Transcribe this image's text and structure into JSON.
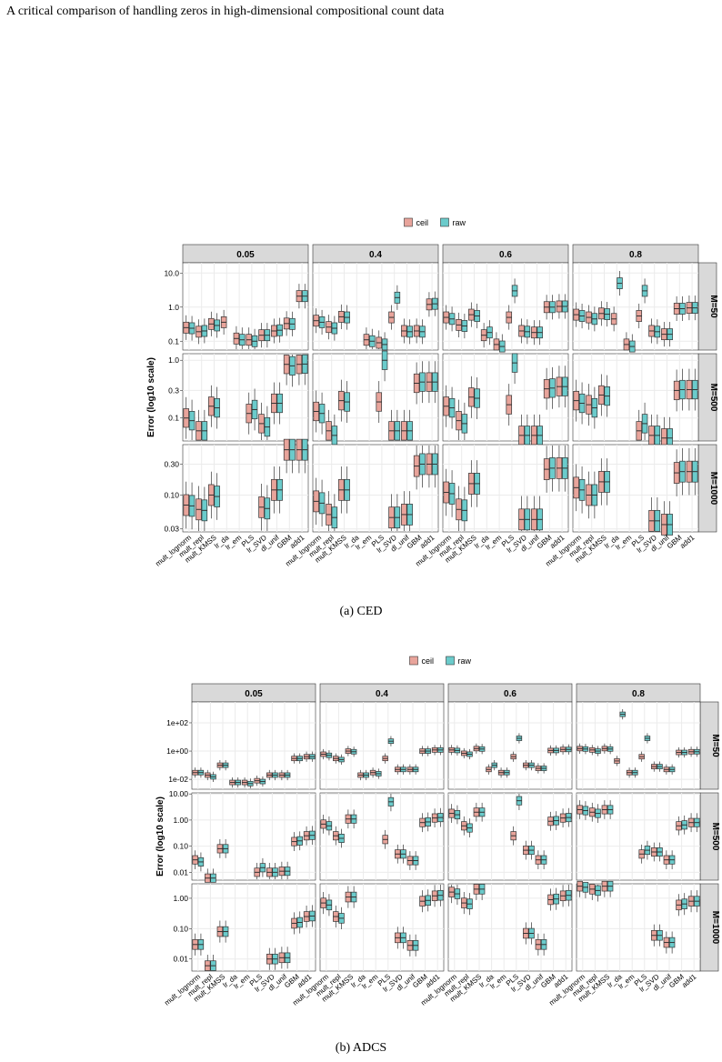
{
  "running_head": "A critical comparison of handling zeros in high-dimensional compositional count data",
  "colors": {
    "ceil": "#e8a49b",
    "raw": "#6bcbcb",
    "strip": "#d9d9d9",
    "grid": "#ebebeb",
    "box_stroke": "#333333"
  },
  "methods": [
    "mult_lognorm",
    "mult_repl",
    "mult_KMSS",
    "lr_da",
    "lr_em",
    "PLS",
    "lr_SVD",
    "dl_unif",
    "GBM",
    "add1"
  ],
  "legend": {
    "ceil": "ceil",
    "raw": "raw"
  },
  "figures": [
    {
      "caption": "(a) CED",
      "ylabel": "Error (log10 scale)",
      "columns": [
        "0.05",
        "0.4",
        "0.6",
        "0.8"
      ],
      "rows": [
        {
          "label": "M=50",
          "ticks": [
            {
              "v": 10,
              "t": "10.0"
            },
            {
              "v": 1,
              "t": "1.0"
            },
            {
              "v": 0.1,
              "t": "0.1"
            }
          ],
          "ymin": 0.055,
          "ymax": 20
        },
        {
          "label": "M=500",
          "ticks": [
            {
              "v": 1,
              "t": "1.0"
            },
            {
              "v": 0.3,
              "t": "0.3"
            },
            {
              "v": 0.1,
              "t": "0.1"
            }
          ],
          "ymin": 0.04,
          "ymax": 1.3
        },
        {
          "label": "M=1000",
          "ticks": [
            {
              "v": 0.3,
              "t": "0.30"
            },
            {
              "v": 0.1,
              "t": "0.10"
            },
            {
              "v": 0.03,
              "t": "0.03"
            }
          ],
          "ymin": 0.027,
          "ymax": 0.6
        }
      ],
      "chart_data": {
        "type": "boxplot",
        "yscale": "log10",
        "panels": {
          "M=50": {
            "0.05": {
              "ceil": [
                0.25,
                0.19,
                0.32,
                0.36,
                0.12,
                0.11,
                0.15,
                0.2,
                0.33,
                2.1
              ],
              "raw": [
                0.24,
                0.2,
                0.29,
                null,
                0.11,
                0.1,
                0.15,
                0.21,
                0.32,
                2.1
              ]
            },
            "0.4": {
              "ceil": [
                0.4,
                0.26,
                0.52,
                null,
                0.11,
                0.09,
                0.5,
                0.2,
                0.2,
                1.2
              ],
              "raw": [
                0.36,
                0.24,
                0.5,
                null,
                0.1,
                0.08,
                1.9,
                0.19,
                0.19,
                1.25
              ]
            },
            "0.6": {
              "ceil": [
                0.5,
                0.3,
                0.6,
                0.15,
                0.08,
                0.5,
                0.2,
                0.18,
                1.0,
                1.05
              ],
              "raw": [
                0.45,
                0.28,
                0.55,
                0.18,
                0.07,
                3.0,
                0.19,
                0.18,
                1.0,
                1.05
              ]
            },
            "0.8": {
              "ceil": [
                0.6,
                0.5,
                0.65,
                0.45,
                0.08,
                0.55,
                0.2,
                0.16,
                0.9,
                0.95
              ],
              "raw": [
                0.55,
                0.45,
                0.62,
                5.0,
                0.07,
                3.0,
                0.19,
                0.16,
                0.9,
                0.95
              ]
            }
          },
          "M=500": {
            "0.05": {
              "ceil": [
                0.1,
                0.06,
                0.16,
                null,
                null,
                0.12,
                0.08,
                0.18,
                0.85,
                0.85
              ],
              "raw": [
                0.09,
                0.06,
                0.15,
                null,
                null,
                0.14,
                0.07,
                0.18,
                0.8,
                0.86
              ]
            },
            "0.4": {
              "ceil": [
                0.13,
                0.06,
                0.2,
                null,
                null,
                0.19,
                0.06,
                0.06,
                0.4,
                0.42
              ],
              "raw": [
                0.12,
                0.05,
                0.19,
                null,
                null,
                1.0,
                0.06,
                0.06,
                0.42,
                0.42
              ]
            },
            "0.6": {
              "ceil": [
                0.16,
                0.09,
                0.23,
                null,
                null,
                0.17,
                0.05,
                0.05,
                0.32,
                0.35
              ],
              "raw": [
                0.15,
                0.08,
                0.22,
                null,
                null,
                0.9,
                0.05,
                0.05,
                0.33,
                0.35
              ]
            },
            "0.8": {
              "ceil": [
                0.2,
                0.17,
                0.25,
                null,
                null,
                0.06,
                0.05,
                0.045,
                0.3,
                0.31
              ],
              "raw": [
                0.18,
                0.15,
                0.24,
                null,
                null,
                0.08,
                0.05,
                0.045,
                0.31,
                0.31
              ]
            }
          },
          "M=1000": {
            "0.05": {
              "ceil": [
                0.07,
                0.06,
                0.1,
                null,
                null,
                null,
                0.065,
                0.12,
                0.5,
                0.5
              ],
              "raw": [
                0.068,
                0.058,
                0.095,
                null,
                null,
                null,
                0.062,
                0.12,
                0.5,
                0.5
              ]
            },
            "0.4": {
              "ceil": [
                0.08,
                0.05,
                0.12,
                null,
                null,
                null,
                0.045,
                0.05,
                0.28,
                0.3
              ],
              "raw": [
                0.075,
                0.045,
                0.12,
                null,
                null,
                null,
                0.045,
                0.05,
                0.3,
                0.3
              ]
            },
            "0.6": {
              "ceil": [
                0.11,
                0.06,
                0.15,
                null,
                null,
                null,
                0.042,
                0.042,
                0.25,
                0.26
              ],
              "raw": [
                0.105,
                0.058,
                0.15,
                null,
                null,
                null,
                0.042,
                0.042,
                0.26,
                0.26
              ]
            },
            "0.8": {
              "ceil": [
                0.13,
                0.1,
                0.16,
                null,
                null,
                null,
                0.04,
                0.035,
                0.22,
                0.23
              ],
              "raw": [
                0.12,
                0.1,
                0.16,
                null,
                null,
                null,
                0.04,
                0.035,
                0.23,
                0.23
              ]
            }
          }
        }
      }
    },
    {
      "caption": "(b) ADCS",
      "ylabel": "Error (log10 scale)",
      "columns": [
        "0.05",
        "0.4",
        "0.6",
        "0.8"
      ],
      "rows": [
        {
          "label": "M=50",
          "ticks": [
            {
              "v": 100,
              "t": "1e+02"
            },
            {
              "v": 1,
              "t": "1e+00"
            },
            {
              "v": 0.01,
              "t": "1e-02"
            }
          ],
          "ymin": 0.002,
          "ymax": 3000
        },
        {
          "label": "M=500",
          "ticks": [
            {
              "v": 10,
              "t": "10.00"
            },
            {
              "v": 1,
              "t": "1.00"
            },
            {
              "v": 0.1,
              "t": "0.10"
            },
            {
              "v": 0.01,
              "t": "0.01"
            }
          ],
          "ymin": 0.005,
          "ymax": 11
        },
        {
          "label": "M=1000",
          "ticks": [
            {
              "v": 1,
              "t": "1.00"
            },
            {
              "v": 0.1,
              "t": "0.10"
            },
            {
              "v": 0.01,
              "t": "0.01"
            }
          ],
          "ymin": 0.004,
          "ymax": 3
        }
      ],
      "chart_data": {
        "type": "boxplot",
        "yscale": "log10",
        "panels": {
          "M=50": {
            "0.05": {
              "ceil": [
                0.03,
                0.02,
                0.1,
                0.006,
                0.006,
                0.008,
                0.02,
                0.02,
                0.3,
                0.4
              ],
              "raw": [
                0.03,
                0.015,
                0.1,
                0.006,
                0.005,
                0.007,
                0.02,
                0.02,
                0.3,
                0.4
              ]
            },
            "0.4": {
              "ceil": [
                0.6,
                0.3,
                1.0,
                0.02,
                0.03,
                0.3,
                0.05,
                0.05,
                1.0,
                1.2
              ],
              "raw": [
                0.5,
                0.25,
                0.9,
                0.02,
                0.025,
                5.0,
                0.05,
                0.05,
                1.0,
                1.2
              ]
            },
            "0.6": {
              "ceil": [
                1.2,
                0.7,
                1.5,
                0.05,
                0.03,
                0.4,
                0.1,
                0.06,
                1.1,
                1.3
              ],
              "raw": [
                1.1,
                0.6,
                1.4,
                0.1,
                0.03,
                8.0,
                0.1,
                0.06,
                1.1,
                1.3
              ]
            },
            "0.8": {
              "ceil": [
                1.5,
                1.2,
                1.5,
                0.2,
                0.03,
                0.4,
                0.08,
                0.05,
                0.8,
                0.9
              ],
              "raw": [
                1.4,
                1.0,
                1.4,
                400,
                0.03,
                8.0,
                0.08,
                0.05,
                0.8,
                0.9
              ]
            }
          },
          "M=500": {
            "0.05": {
              "ceil": [
                0.03,
                0.006,
                0.08,
                null,
                null,
                0.01,
                0.01,
                0.011,
                0.15,
                0.25
              ],
              "raw": [
                0.025,
                0.006,
                0.08,
                null,
                null,
                0.015,
                0.01,
                0.011,
                0.16,
                0.26
              ]
            },
            "0.4": {
              "ceil": [
                0.7,
                0.25,
                1.1,
                null,
                null,
                0.18,
                0.05,
                0.028,
                0.8,
                1.2
              ],
              "raw": [
                0.6,
                0.2,
                1.1,
                null,
                null,
                5.0,
                0.05,
                0.028,
                0.85,
                1.25
              ]
            },
            "0.6": {
              "ceil": [
                1.8,
                0.6,
                2.0,
                null,
                null,
                0.25,
                0.07,
                0.03,
                0.9,
                1.2
              ],
              "raw": [
                1.6,
                0.5,
                2.0,
                null,
                null,
                5.5,
                0.07,
                0.03,
                0.95,
                1.25
              ]
            },
            "0.8": {
              "ceil": [
                2.5,
                2.0,
                2.5,
                null,
                null,
                0.05,
                0.06,
                0.03,
                0.6,
                0.8
              ],
              "raw": [
                2.3,
                1.8,
                2.5,
                null,
                null,
                0.07,
                0.06,
                0.03,
                0.65,
                0.8
              ]
            }
          },
          "M=1000": {
            "0.05": {
              "ceil": [
                0.03,
                0.006,
                0.08,
                null,
                null,
                null,
                0.01,
                0.011,
                0.15,
                0.25
              ],
              "raw": [
                0.03,
                0.006,
                0.08,
                null,
                null,
                null,
                0.01,
                0.011,
                0.16,
                0.26
              ]
            },
            "0.4": {
              "ceil": [
                0.7,
                0.25,
                1.1,
                null,
                null,
                null,
                0.05,
                0.028,
                0.8,
                1.2
              ],
              "raw": [
                0.6,
                0.22,
                1.1,
                null,
                null,
                null,
                0.05,
                0.028,
                0.85,
                1.25
              ]
            },
            "0.6": {
              "ceil": [
                1.6,
                0.7,
                2.0,
                null,
                null,
                null,
                0.07,
                0.03,
                0.9,
                1.2
              ],
              "raw": [
                1.4,
                0.65,
                2.0,
                null,
                null,
                null,
                0.07,
                0.03,
                0.95,
                1.25
              ]
            },
            "0.8": {
              "ceil": [
                2.5,
                2.0,
                2.5,
                null,
                null,
                null,
                0.06,
                0.035,
                0.6,
                0.8
              ],
              "raw": [
                2.3,
                1.8,
                2.5,
                null,
                null,
                null,
                0.06,
                0.035,
                0.65,
                0.8
              ]
            }
          }
        }
      }
    }
  ]
}
